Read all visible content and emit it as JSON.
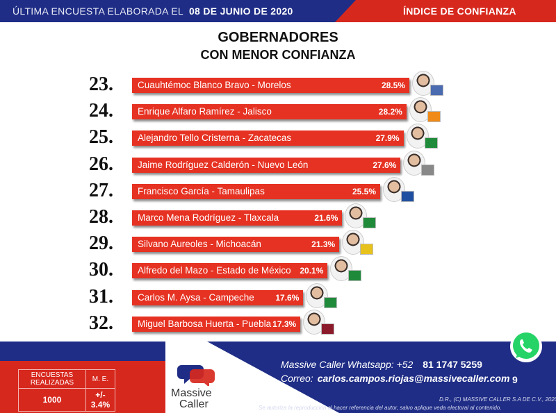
{
  "header": {
    "survey_label": "ÚLTIMA ENCUESTA ELABORADA EL",
    "survey_date": "08 DE JUNIO DE 2020",
    "section": "ÍNDICE DE CONFIANZA"
  },
  "chart_data": {
    "type": "bar",
    "title": "GOBERNADORES",
    "subtitle": "CON MENOR CONFIANZA",
    "xlim": [
      0,
      30
    ],
    "ranks": [
      "23.",
      "24.",
      "25.",
      "26.",
      "27.",
      "28.",
      "29.",
      "30.",
      "31.",
      "32."
    ],
    "categories": [
      "Cuauhtémoc Blanco Bravo - Morelos",
      "Enrique Alfaro Ramírez - Jalisco",
      "Alejandro Tello Cristerna - Zacatecas",
      "Jaime Rodríguez Calderón - Nuevo León",
      "Francisco García - Tamaulipas",
      "Marco Mena Rodríguez - Tlaxcala",
      "Silvano Aureoles - Michoacán",
      "Alfredo del Mazo - Estado de México",
      "Carlos M. Aysa - Campeche",
      "Miguel Barbosa Huerta - Puebla"
    ],
    "values": [
      28.5,
      28.2,
      27.9,
      27.6,
      25.5,
      21.6,
      21.3,
      20.1,
      17.6,
      17.3
    ],
    "value_labels": [
      "28.5%",
      "28.2%",
      "27.9%",
      "27.6%",
      "25.5%",
      "21.6%",
      "21.3%",
      "20.1%",
      "17.6%",
      "17.3%"
    ],
    "bar_color": "#e63222"
  },
  "footer": {
    "stats": {
      "col1_header": "ENCUESTAS REALIZADAS",
      "col2_header": "M. E.",
      "col1_value": "1000",
      "col2_value": "+/- 3.4%"
    },
    "logo_line1": "Massive",
    "logo_line2": "Caller",
    "whatsapp_label": "Massive Caller Whatsapp: +52",
    "whatsapp_number": "81 1747 5259",
    "email_label": "Correo:",
    "email": "carlos.campos.riojas@massivecaller.com",
    "page_number": "9",
    "copyright": "D.R., (C) MASSIVE CALLER S.A DE C.V., 2020.",
    "disclaimer": "Se autoriza la reproducción al hacer referencia del autor, salvo aplique veda electoral al contenido."
  },
  "colors": {
    "navy": "#1f2d86",
    "red": "#d7281e"
  },
  "icons": [
    "whatsapp-icon",
    "massive-caller-logo",
    "governor-photo",
    "party-logo"
  ]
}
